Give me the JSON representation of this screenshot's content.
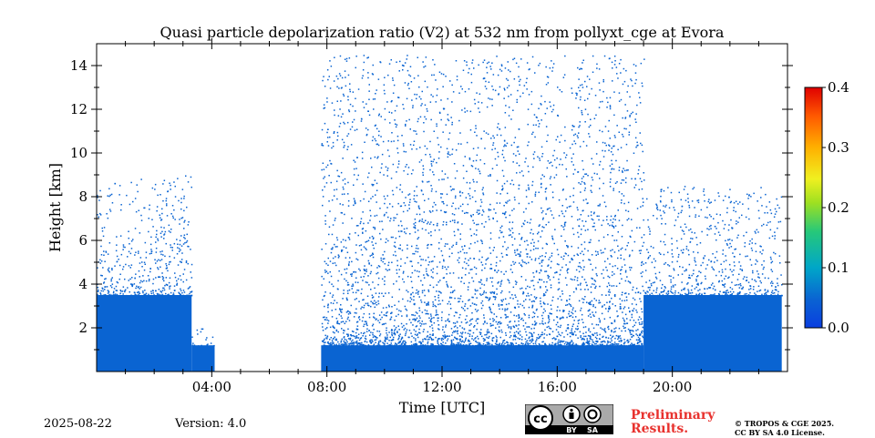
{
  "chart_data": {
    "type": "heatmap",
    "title": "Quasi particle depolarization ratio (V2) at 532 nm from pollyxt_cge at Evora",
    "xlabel": "Time [UTC]",
    "ylabel": "Height [km]",
    "xlim_hours": [
      0,
      24
    ],
    "ylim_km": [
      0,
      15
    ],
    "x_ticks": [
      {
        "hour": 4,
        "label": "04:00"
      },
      {
        "hour": 8,
        "label": "08:00"
      },
      {
        "hour": 12,
        "label": "12:00"
      },
      {
        "hour": 16,
        "label": "16:00"
      },
      {
        "hour": 20,
        "label": "20:00"
      }
    ],
    "y_ticks": [
      {
        "km": 2,
        "label": "2"
      },
      {
        "km": 4,
        "label": "4"
      },
      {
        "km": 6,
        "label": "6"
      },
      {
        "km": 8,
        "label": "8"
      },
      {
        "km": 10,
        "label": "10"
      },
      {
        "km": 12,
        "label": "12"
      },
      {
        "km": 14,
        "label": "14"
      }
    ],
    "colorbar": {
      "range": [
        0.0,
        0.4
      ],
      "ticks": [
        {
          "value": 0.0,
          "label": "0.0"
        },
        {
          "value": 0.1,
          "label": "0.1"
        },
        {
          "value": 0.2,
          "label": "0.2"
        },
        {
          "value": 0.3,
          "label": "0.3"
        },
        {
          "value": 0.4,
          "label": "0.4"
        }
      ]
    },
    "signal_color": "#0a64d2",
    "dominant_value": 0.02,
    "signal_regions": [
      {
        "t_start": 0.0,
        "t_end": 3.3,
        "dense_top_km": 3.5,
        "sparse_top_km": 9.0
      },
      {
        "t_start": 3.3,
        "t_end": 4.1,
        "dense_top_km": 1.2,
        "sparse_top_km": 2.0
      },
      {
        "t_start": 7.8,
        "t_end": 19.0,
        "dense_top_km": 1.2,
        "sparse_top_km": 14.5
      },
      {
        "t_start": 19.0,
        "t_end": 23.8,
        "dense_top_km": 3.5,
        "sparse_top_km": 8.5
      }
    ]
  },
  "footer": {
    "date": "2025-08-22",
    "version": "Version: 4.0",
    "preliminary_line1": "Preliminary",
    "preliminary_line2": "Results.",
    "copyright_line1": "© TROPOS & CGE 2025.",
    "copyright_line2": "CC BY SA 4.0 License."
  },
  "license_badge": {
    "by": "BY",
    "sa": "SA"
  }
}
